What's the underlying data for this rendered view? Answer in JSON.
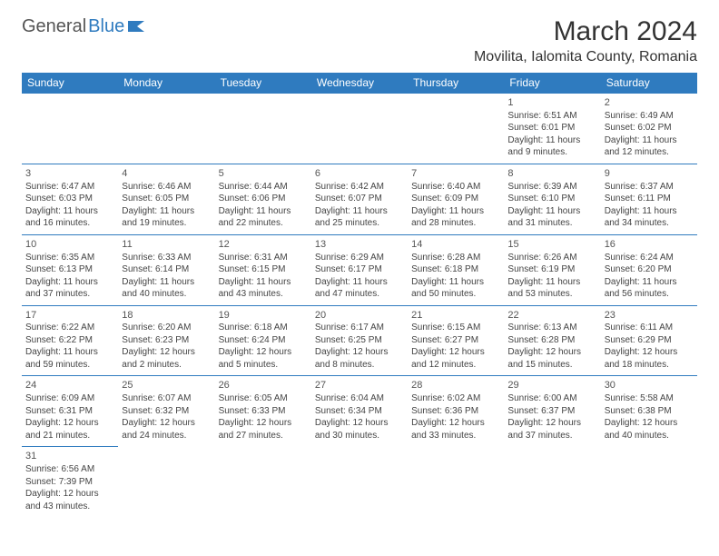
{
  "brand": {
    "text1": "General",
    "text2": "Blue",
    "color1": "#555555",
    "color2": "#2f7bbf"
  },
  "title": "March 2024",
  "location": "Movilita, Ialomita County, Romania",
  "header_bg": "#2f7bbf",
  "header_fg": "#ffffff",
  "border_color": "#2f7bbf",
  "day_headers": [
    "Sunday",
    "Monday",
    "Tuesday",
    "Wednesday",
    "Thursday",
    "Friday",
    "Saturday"
  ],
  "weeks": [
    [
      null,
      null,
      null,
      null,
      null,
      {
        "n": "1",
        "sr": "Sunrise: 6:51 AM",
        "ss": "Sunset: 6:01 PM",
        "d1": "Daylight: 11 hours",
        "d2": "and 9 minutes."
      },
      {
        "n": "2",
        "sr": "Sunrise: 6:49 AM",
        "ss": "Sunset: 6:02 PM",
        "d1": "Daylight: 11 hours",
        "d2": "and 12 minutes."
      }
    ],
    [
      {
        "n": "3",
        "sr": "Sunrise: 6:47 AM",
        "ss": "Sunset: 6:03 PM",
        "d1": "Daylight: 11 hours",
        "d2": "and 16 minutes."
      },
      {
        "n": "4",
        "sr": "Sunrise: 6:46 AM",
        "ss": "Sunset: 6:05 PM",
        "d1": "Daylight: 11 hours",
        "d2": "and 19 minutes."
      },
      {
        "n": "5",
        "sr": "Sunrise: 6:44 AM",
        "ss": "Sunset: 6:06 PM",
        "d1": "Daylight: 11 hours",
        "d2": "and 22 minutes."
      },
      {
        "n": "6",
        "sr": "Sunrise: 6:42 AM",
        "ss": "Sunset: 6:07 PM",
        "d1": "Daylight: 11 hours",
        "d2": "and 25 minutes."
      },
      {
        "n": "7",
        "sr": "Sunrise: 6:40 AM",
        "ss": "Sunset: 6:09 PM",
        "d1": "Daylight: 11 hours",
        "d2": "and 28 minutes."
      },
      {
        "n": "8",
        "sr": "Sunrise: 6:39 AM",
        "ss": "Sunset: 6:10 PM",
        "d1": "Daylight: 11 hours",
        "d2": "and 31 minutes."
      },
      {
        "n": "9",
        "sr": "Sunrise: 6:37 AM",
        "ss": "Sunset: 6:11 PM",
        "d1": "Daylight: 11 hours",
        "d2": "and 34 minutes."
      }
    ],
    [
      {
        "n": "10",
        "sr": "Sunrise: 6:35 AM",
        "ss": "Sunset: 6:13 PM",
        "d1": "Daylight: 11 hours",
        "d2": "and 37 minutes."
      },
      {
        "n": "11",
        "sr": "Sunrise: 6:33 AM",
        "ss": "Sunset: 6:14 PM",
        "d1": "Daylight: 11 hours",
        "d2": "and 40 minutes."
      },
      {
        "n": "12",
        "sr": "Sunrise: 6:31 AM",
        "ss": "Sunset: 6:15 PM",
        "d1": "Daylight: 11 hours",
        "d2": "and 43 minutes."
      },
      {
        "n": "13",
        "sr": "Sunrise: 6:29 AM",
        "ss": "Sunset: 6:17 PM",
        "d1": "Daylight: 11 hours",
        "d2": "and 47 minutes."
      },
      {
        "n": "14",
        "sr": "Sunrise: 6:28 AM",
        "ss": "Sunset: 6:18 PM",
        "d1": "Daylight: 11 hours",
        "d2": "and 50 minutes."
      },
      {
        "n": "15",
        "sr": "Sunrise: 6:26 AM",
        "ss": "Sunset: 6:19 PM",
        "d1": "Daylight: 11 hours",
        "d2": "and 53 minutes."
      },
      {
        "n": "16",
        "sr": "Sunrise: 6:24 AM",
        "ss": "Sunset: 6:20 PM",
        "d1": "Daylight: 11 hours",
        "d2": "and 56 minutes."
      }
    ],
    [
      {
        "n": "17",
        "sr": "Sunrise: 6:22 AM",
        "ss": "Sunset: 6:22 PM",
        "d1": "Daylight: 11 hours",
        "d2": "and 59 minutes."
      },
      {
        "n": "18",
        "sr": "Sunrise: 6:20 AM",
        "ss": "Sunset: 6:23 PM",
        "d1": "Daylight: 12 hours",
        "d2": "and 2 minutes."
      },
      {
        "n": "19",
        "sr": "Sunrise: 6:18 AM",
        "ss": "Sunset: 6:24 PM",
        "d1": "Daylight: 12 hours",
        "d2": "and 5 minutes."
      },
      {
        "n": "20",
        "sr": "Sunrise: 6:17 AM",
        "ss": "Sunset: 6:25 PM",
        "d1": "Daylight: 12 hours",
        "d2": "and 8 minutes."
      },
      {
        "n": "21",
        "sr": "Sunrise: 6:15 AM",
        "ss": "Sunset: 6:27 PM",
        "d1": "Daylight: 12 hours",
        "d2": "and 12 minutes."
      },
      {
        "n": "22",
        "sr": "Sunrise: 6:13 AM",
        "ss": "Sunset: 6:28 PM",
        "d1": "Daylight: 12 hours",
        "d2": "and 15 minutes."
      },
      {
        "n": "23",
        "sr": "Sunrise: 6:11 AM",
        "ss": "Sunset: 6:29 PM",
        "d1": "Daylight: 12 hours",
        "d2": "and 18 minutes."
      }
    ],
    [
      {
        "n": "24",
        "sr": "Sunrise: 6:09 AM",
        "ss": "Sunset: 6:31 PM",
        "d1": "Daylight: 12 hours",
        "d2": "and 21 minutes."
      },
      {
        "n": "25",
        "sr": "Sunrise: 6:07 AM",
        "ss": "Sunset: 6:32 PM",
        "d1": "Daylight: 12 hours",
        "d2": "and 24 minutes."
      },
      {
        "n": "26",
        "sr": "Sunrise: 6:05 AM",
        "ss": "Sunset: 6:33 PM",
        "d1": "Daylight: 12 hours",
        "d2": "and 27 minutes."
      },
      {
        "n": "27",
        "sr": "Sunrise: 6:04 AM",
        "ss": "Sunset: 6:34 PM",
        "d1": "Daylight: 12 hours",
        "d2": "and 30 minutes."
      },
      {
        "n": "28",
        "sr": "Sunrise: 6:02 AM",
        "ss": "Sunset: 6:36 PM",
        "d1": "Daylight: 12 hours",
        "d2": "and 33 minutes."
      },
      {
        "n": "29",
        "sr": "Sunrise: 6:00 AM",
        "ss": "Sunset: 6:37 PM",
        "d1": "Daylight: 12 hours",
        "d2": "and 37 minutes."
      },
      {
        "n": "30",
        "sr": "Sunrise: 5:58 AM",
        "ss": "Sunset: 6:38 PM",
        "d1": "Daylight: 12 hours",
        "d2": "and 40 minutes."
      }
    ],
    [
      {
        "n": "31",
        "sr": "Sunrise: 6:56 AM",
        "ss": "Sunset: 7:39 PM",
        "d1": "Daylight: 12 hours",
        "d2": "and 43 minutes."
      },
      null,
      null,
      null,
      null,
      null,
      null
    ]
  ]
}
